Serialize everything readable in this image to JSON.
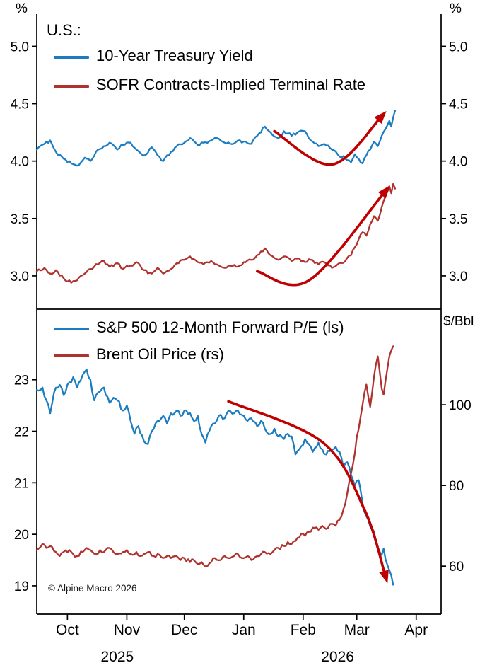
{
  "figure": {
    "source_note": "© Alpine Macro 2026"
  },
  "colors": {
    "axis": "#000000",
    "blue": "#1b7dc0",
    "red": "#b0322f",
    "annotation_red": "#c00000"
  },
  "x_axis": {
    "min": 0,
    "max": 211,
    "month_ticks": [
      {
        "label": "Oct",
        "x": 16
      },
      {
        "label": "Nov",
        "x": 47
      },
      {
        "label": "Dec",
        "x": 77
      },
      {
        "label": "Jan",
        "x": 108
      },
      {
        "label": "Feb",
        "x": 139
      },
      {
        "label": "Mar",
        "x": 167
      },
      {
        "label": "Apr",
        "x": 198
      }
    ],
    "year_labels": [
      {
        "label": "2025",
        "x": 42
      },
      {
        "label": "2026",
        "x": 157
      }
    ]
  },
  "chart_data": [
    {
      "type": "line",
      "panel": "top",
      "title": "U.S.:",
      "unit_left": "%",
      "unit_right": "%",
      "axes": {
        "left": {
          "ylim": [
            2.71,
            5.28
          ],
          "ticks": [
            {
              "value": 3.0,
              "label": "3.0"
            },
            {
              "value": 3.5,
              "label": "3.5"
            },
            {
              "value": 4.0,
              "label": "4.0"
            },
            {
              "value": 4.5,
              "label": "4.5"
            },
            {
              "value": 5.0,
              "label": "5.0"
            }
          ]
        },
        "right": {
          "ylim": [
            2.71,
            5.28
          ],
          "ticks": [
            {
              "value": 3.0,
              "label": "3.0"
            },
            {
              "value": 3.5,
              "label": "3.5"
            },
            {
              "value": 4.0,
              "label": "4.0"
            },
            {
              "value": 4.5,
              "label": "4.5"
            },
            {
              "value": 5.0,
              "label": "5.0"
            }
          ]
        }
      },
      "series": [
        {
          "name": "10-Year Treasury Yield",
          "color": "#1b7dc0",
          "axis": "left",
          "noise": 0.013,
          "x": [
            0,
            4,
            7,
            10,
            14,
            18,
            21,
            25,
            28,
            32,
            35,
            38,
            42,
            45,
            49,
            52,
            56,
            60,
            63,
            66,
            70,
            73,
            77,
            80,
            84,
            87,
            91,
            94,
            98,
            101,
            105,
            108,
            112,
            115,
            119,
            122,
            126,
            129,
            133,
            136,
            140,
            143,
            147,
            150,
            154,
            157,
            161,
            164,
            166,
            168,
            170,
            172,
            174,
            176,
            178,
            180,
            182,
            184,
            185,
            186,
            187
          ],
          "y": [
            4.1,
            4.15,
            4.18,
            4.08,
            4.02,
            3.98,
            3.96,
            4.03,
            4.0,
            4.1,
            4.13,
            4.16,
            4.1,
            4.14,
            4.16,
            4.1,
            4.05,
            4.12,
            4.05,
            4.0,
            4.08,
            4.13,
            4.16,
            4.2,
            4.14,
            4.16,
            4.18,
            4.2,
            4.16,
            4.15,
            4.18,
            4.17,
            4.15,
            4.22,
            4.3,
            4.25,
            4.2,
            4.26,
            4.22,
            4.25,
            4.26,
            4.18,
            4.13,
            4.15,
            4.1,
            4.06,
            4.02,
            3.99,
            4.06,
            4.02,
            3.98,
            4.05,
            4.1,
            4.17,
            4.13,
            4.22,
            4.28,
            4.35,
            4.3,
            4.38,
            4.44
          ]
        },
        {
          "name": "SOFR Contracts-Implied Terminal Rate",
          "color": "#b0322f",
          "axis": "left",
          "noise": 0.013,
          "x": [
            0,
            4,
            7,
            10,
            14,
            18,
            21,
            25,
            28,
            32,
            35,
            38,
            42,
            45,
            49,
            52,
            56,
            60,
            63,
            66,
            70,
            73,
            77,
            80,
            84,
            87,
            91,
            94,
            98,
            101,
            105,
            108,
            112,
            115,
            119,
            122,
            126,
            129,
            133,
            136,
            140,
            143,
            147,
            150,
            154,
            157,
            161,
            164,
            166,
            168,
            170,
            172,
            174,
            176,
            178,
            180,
            182,
            184,
            185,
            186,
            187
          ],
          "y": [
            3.04,
            3.07,
            3.02,
            3.05,
            2.98,
            2.94,
            2.96,
            3.02,
            3.06,
            3.1,
            3.13,
            3.08,
            3.11,
            3.06,
            3.09,
            3.12,
            3.05,
            3.02,
            3.07,
            3.02,
            3.06,
            3.11,
            3.14,
            3.17,
            3.12,
            3.1,
            3.13,
            3.1,
            3.07,
            3.09,
            3.08,
            3.12,
            3.14,
            3.18,
            3.24,
            3.18,
            3.14,
            3.17,
            3.13,
            3.15,
            3.12,
            3.14,
            3.1,
            3.12,
            3.07,
            3.1,
            3.13,
            3.18,
            3.25,
            3.32,
            3.38,
            3.35,
            3.45,
            3.52,
            3.48,
            3.6,
            3.7,
            3.78,
            3.72,
            3.8,
            3.76
          ]
        }
      ],
      "annotations": [
        {
          "type": "curved-arrow",
          "color": "#c00000",
          "axis": "left",
          "points": [
            [
              124,
              4.26
            ],
            [
              154,
              3.97
            ],
            [
              180,
              4.39
            ]
          ]
        },
        {
          "type": "curved-arrow",
          "color": "#c00000",
          "axis": "left",
          "points": [
            [
              115,
              3.04
            ],
            [
              142,
              2.96
            ],
            [
              182,
              3.74
            ]
          ]
        }
      ]
    },
    {
      "type": "line",
      "panel": "bottom",
      "unit_right": "$/Bbl",
      "axes": {
        "left": {
          "ylim": [
            18.45,
            24.37
          ],
          "ticks": [
            {
              "value": 19,
              "label": "19"
            },
            {
              "value": 20,
              "label": "20"
            },
            {
              "value": 21,
              "label": "21"
            },
            {
              "value": 22,
              "label": "22"
            },
            {
              "value": 23,
              "label": "23"
            }
          ]
        },
        "right": {
          "ylim": [
            48.1,
            123.7
          ],
          "ticks": [
            {
              "value": 60,
              "label": "60"
            },
            {
              "value": 80,
              "label": "80"
            },
            {
              "value": 100,
              "label": "100"
            }
          ]
        }
      },
      "series": [
        {
          "name": "S&P 500 12-Month Forward P/E (ls)",
          "color": "#1b7dc0",
          "axis": "left",
          "noise": 0.05,
          "x": [
            0,
            3,
            5,
            7,
            9,
            12,
            14,
            17,
            19,
            21,
            24,
            26,
            28,
            30,
            32,
            35,
            38,
            40,
            42,
            45,
            47,
            49,
            51,
            53,
            56,
            58,
            60,
            63,
            66,
            68,
            70,
            73,
            75,
            77,
            80,
            82,
            84,
            86,
            88,
            90,
            93,
            95,
            98,
            100,
            103,
            105,
            108,
            110,
            112,
            115,
            117,
            119,
            122,
            124,
            126,
            129,
            131,
            133,
            135,
            137,
            140,
            142,
            144,
            147,
            149,
            151,
            154,
            156,
            158,
            160,
            162,
            164,
            166,
            168,
            170,
            172,
            174,
            176,
            178,
            180,
            181,
            183,
            185,
            186
          ],
          "y": [
            22.8,
            22.85,
            22.6,
            22.35,
            22.75,
            22.9,
            22.7,
            22.95,
            23.05,
            22.85,
            23.1,
            23.2,
            23.0,
            22.6,
            22.75,
            22.85,
            22.55,
            22.65,
            22.6,
            22.4,
            22.5,
            22.2,
            21.95,
            22.1,
            21.8,
            21.75,
            22.0,
            22.2,
            22.3,
            22.15,
            22.35,
            22.4,
            22.3,
            22.4,
            22.35,
            22.2,
            22.3,
            21.95,
            21.78,
            22.0,
            22.15,
            22.3,
            22.25,
            22.4,
            22.35,
            22.4,
            22.3,
            22.2,
            22.25,
            22.1,
            22.2,
            22.05,
            21.95,
            22.05,
            21.9,
            21.85,
            21.95,
            21.9,
            21.55,
            21.65,
            21.85,
            21.75,
            21.6,
            21.78,
            21.65,
            21.55,
            21.65,
            21.7,
            21.6,
            21.3,
            21.4,
            21.15,
            20.95,
            21.05,
            20.6,
            20.35,
            20.15,
            20.05,
            19.75,
            19.6,
            19.72,
            19.4,
            19.2,
            19.02
          ]
        },
        {
          "name": "Brent Oil Price (rs)",
          "color": "#b0322f",
          "axis": "right",
          "noise": 0.5,
          "x": [
            0,
            3,
            5,
            7,
            10,
            12,
            14,
            17,
            19,
            21,
            24,
            26,
            28,
            31,
            33,
            35,
            38,
            40,
            42,
            45,
            47,
            49,
            52,
            54,
            56,
            59,
            61,
            63,
            66,
            68,
            70,
            73,
            75,
            77,
            80,
            82,
            84,
            86,
            89,
            91,
            93,
            96,
            98,
            101,
            103,
            105,
            108,
            110,
            112,
            115,
            117,
            119,
            122,
            124,
            126,
            129,
            131,
            133,
            136,
            138,
            140,
            142,
            145,
            147,
            149,
            152,
            154,
            156,
            158,
            160,
            162,
            164,
            166,
            167,
            169,
            170,
            171,
            172,
            173,
            174,
            175,
            176,
            177,
            178,
            179,
            180,
            181,
            182,
            183,
            184,
            185,
            186
          ],
          "y": [
            64.0,
            65.5,
            64.5,
            65.0,
            63.5,
            62.5,
            63.5,
            64.0,
            63.0,
            62.5,
            63.5,
            64.5,
            64.0,
            63.0,
            64.0,
            63.5,
            64.5,
            63.5,
            63.0,
            63.5,
            64.0,
            63.0,
            63.5,
            62.5,
            63.0,
            63.5,
            62.5,
            63.0,
            62.0,
            62.5,
            62.0,
            62.5,
            61.5,
            62.0,
            61.0,
            61.5,
            60.5,
            61.0,
            60.0,
            61.0,
            62.0,
            61.5,
            62.5,
            62.0,
            62.5,
            63.0,
            62.0,
            62.5,
            61.5,
            62.5,
            63.0,
            63.5,
            63.0,
            64.0,
            64.5,
            65.0,
            66.0,
            65.5,
            67.0,
            68.0,
            67.5,
            68.5,
            69.5,
            69.0,
            70.0,
            69.5,
            70.5,
            70.0,
            71.5,
            74.0,
            78.0,
            83.0,
            88.0,
            92.0,
            97.0,
            100.0,
            103.0,
            105.0,
            102.0,
            99.5,
            103.0,
            107.0,
            110.0,
            112.0,
            108.0,
            104.0,
            102.5,
            106.0,
            109.0,
            112.0,
            113.5,
            114.5
          ]
        }
      ],
      "annotations": [
        {
          "type": "curved-arrow",
          "color": "#c00000",
          "axis": "left",
          "points": [
            [
              100,
              22.58
            ],
            [
              149,
              21.79
            ],
            [
              171,
              20.48
            ],
            [
              182,
              19.18
            ]
          ]
        }
      ]
    }
  ]
}
